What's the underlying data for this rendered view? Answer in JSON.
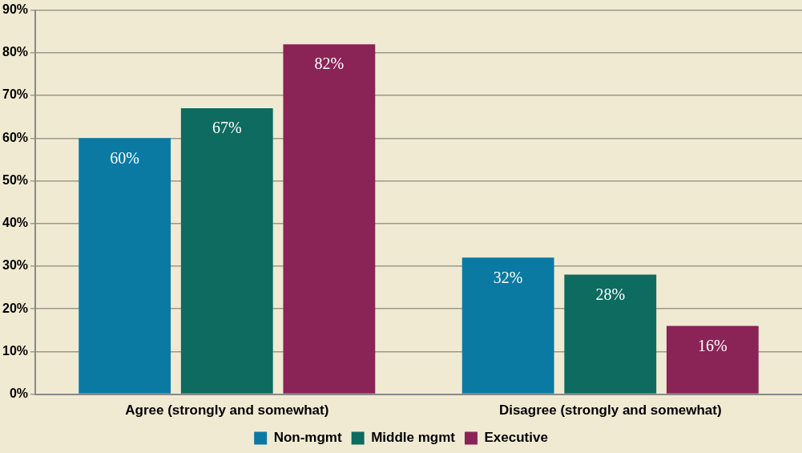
{
  "chart_data": {
    "type": "bar",
    "categories": [
      "Agree (strongly and somewhat)",
      "Disagree (strongly and somewhat)"
    ],
    "series": [
      {
        "name": "Non-mgmt",
        "color": "#0a7aa3",
        "values": [
          60,
          32
        ],
        "value_labels": [
          "60%",
          "32%"
        ]
      },
      {
        "name": "Middle mgmt",
        "color": "#0d6b5f",
        "values": [
          67,
          28
        ],
        "value_labels": [
          "67%",
          "28%"
        ]
      },
      {
        "name": "Executive",
        "color": "#8a2456",
        "values": [
          82,
          16
        ],
        "value_labels": [
          "82%",
          "16%"
        ]
      }
    ],
    "ylim": [
      0,
      90
    ],
    "yticks": [
      {
        "value": 0,
        "label": "0%"
      },
      {
        "value": 10,
        "label": "10%"
      },
      {
        "value": 20,
        "label": "20%"
      },
      {
        "value": 30,
        "label": "30%"
      },
      {
        "value": 40,
        "label": "40%"
      },
      {
        "value": 50,
        "label": "50%"
      },
      {
        "value": 60,
        "label": "60%"
      },
      {
        "value": 70,
        "label": "70%"
      },
      {
        "value": 80,
        "label": "80%"
      },
      {
        "value": 90,
        "label": "90%"
      }
    ],
    "grid": "y",
    "legend": "bottom"
  }
}
